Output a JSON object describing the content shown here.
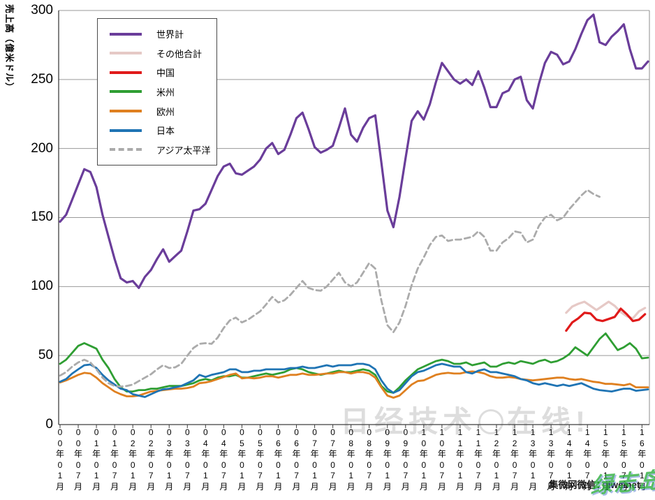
{
  "y_axis": {
    "title": "売上高（億米ドル）",
    "ticks": [
      0,
      50,
      100,
      150,
      200,
      250,
      300
    ]
  },
  "watermarks": {
    "brand_left": "日经技术",
    "brand_right": "在线!",
    "wechat": "集微网微信：jiweinet",
    "stamp": "绿志岛"
  },
  "chart_data": {
    "type": "line",
    "title": "",
    "ylabel": "売上高（億米ドル）",
    "ylim": [
      0,
      300
    ],
    "y_ticks": [
      0,
      50,
      100,
      150,
      200,
      250,
      300
    ],
    "grid": true,
    "legend_position": "top-left",
    "x_unit": "months since 2000-01",
    "sample_interval_months": 2,
    "x_tick_interval_months": 6,
    "x_tick_labels": [
      "00年01月",
      "00年07月",
      "01年01月",
      "01年07月",
      "02年01月",
      "02年07月",
      "03年01月",
      "03年07月",
      "04年01月",
      "04年07月",
      "05年01月",
      "05年07月",
      "06年01月",
      "06年07月",
      "07年01月",
      "07年07月",
      "08年01月",
      "08年07月",
      "09年01月",
      "09年07月",
      "10年01月",
      "10年07月",
      "11年01月",
      "11年07月",
      "12年01月",
      "12年07月",
      "13年01月",
      "13年07月",
      "14年01月",
      "14年07月",
      "15年01月",
      "15年07月",
      "16年01月"
    ],
    "series": [
      {
        "id": "world-total",
        "name": "世界計",
        "color": "#6A3D9A",
        "style": "solid",
        "width": 3.2,
        "start_month": 0,
        "values": [
          147,
          152,
          163,
          174,
          185,
          183,
          172,
          152,
          136,
          120,
          106,
          103,
          104,
          99,
          107,
          112,
          120,
          127,
          118,
          122,
          126,
          140,
          155,
          156,
          160,
          170,
          180,
          187,
          189,
          182,
          181,
          184,
          187,
          192,
          200,
          204,
          196,
          199,
          210,
          222,
          226,
          214,
          201,
          197,
          199,
          202,
          215,
          229,
          210,
          205,
          215,
          222,
          224,
          190,
          155,
          143,
          165,
          193,
          220,
          227,
          221,
          232,
          248,
          262,
          256,
          250,
          247,
          250,
          246,
          256,
          244,
          230,
          230,
          240,
          242,
          250,
          252,
          235,
          229,
          247,
          262,
          270,
          268,
          261,
          263,
          272,
          283,
          293,
          297,
          277,
          275,
          281,
          285,
          290,
          272,
          258,
          258,
          263
        ]
      },
      {
        "id": "others-total",
        "name": "その他合計",
        "color": "#E6C9C6",
        "style": "solid",
        "width": 3.2,
        "start_month": 167,
        "values": [
          81,
          85.5,
          87.5,
          89,
          86,
          83,
          86,
          89,
          86,
          81.5,
          78.5,
          77,
          82,
          84.5
        ]
      },
      {
        "id": "china",
        "name": "中国",
        "color": "#E01A1A",
        "style": "solid",
        "width": 3.2,
        "start_month": 167,
        "values": [
          68,
          74,
          77,
          81,
          80.5,
          76,
          75,
          76.5,
          78,
          84,
          80,
          75,
          76,
          80
        ]
      },
      {
        "id": "americas",
        "name": "米州",
        "color": "#2F9E33",
        "style": "solid",
        "width": 2.8,
        "start_month": 0,
        "values": [
          44,
          47,
          52,
          57,
          59,
          57,
          55,
          47,
          41,
          33,
          27,
          24,
          24,
          25,
          25,
          26,
          26,
          27,
          28,
          28,
          28,
          29,
          30,
          32,
          33,
          32,
          34,
          35,
          35,
          36,
          34,
          34,
          35,
          36,
          37,
          36,
          37,
          38,
          40,
          41,
          40,
          38,
          37,
          36,
          37,
          38,
          39,
          38,
          38,
          39,
          40,
          39,
          36,
          28,
          24,
          23,
          27,
          32,
          36,
          40,
          42,
          44,
          46,
          47,
          46,
          44,
          44,
          45,
          43,
          44,
          45,
          42,
          42,
          44,
          45,
          44,
          46,
          45,
          44,
          46,
          47,
          45,
          46,
          48,
          51,
          56,
          53,
          50,
          56,
          62,
          66,
          60,
          54,
          56,
          59,
          55,
          48,
          48.5
        ]
      },
      {
        "id": "europe",
        "name": "欧州",
        "color": "#DF8020",
        "style": "solid",
        "width": 2.8,
        "start_month": 0,
        "values": [
          30.5,
          32,
          34,
          36,
          37.5,
          37,
          34,
          30,
          27,
          24,
          22,
          20.5,
          20.5,
          21,
          22.5,
          24,
          24.5,
          25,
          25.5,
          26,
          26,
          26.5,
          27.5,
          30,
          30.5,
          31.5,
          33,
          34.5,
          36,
          37,
          33.5,
          34,
          33.5,
          34,
          35,
          35,
          34,
          35,
          36,
          36,
          37,
          36,
          36,
          36.5,
          37,
          37,
          38,
          38,
          37,
          38,
          38,
          37,
          34,
          27,
          21,
          19.5,
          21,
          25,
          29,
          31.5,
          32,
          34,
          36,
          37,
          37.5,
          37,
          37,
          38,
          38.5,
          38,
          37,
          35,
          34,
          34,
          34.5,
          34,
          33,
          32.5,
          32,
          32.5,
          33,
          33.5,
          34,
          34,
          33,
          32.5,
          33,
          32,
          31,
          30.5,
          29.5,
          29.5,
          29,
          28.5,
          29.5,
          27,
          27,
          27
        ]
      },
      {
        "id": "japan",
        "name": "日本",
        "color": "#1F74B4",
        "style": "solid",
        "width": 2.8,
        "start_month": 0,
        "values": [
          31,
          33,
          37,
          40,
          43,
          43.5,
          41,
          36,
          32,
          29,
          26,
          25,
          22,
          21,
          20,
          22,
          24,
          25.5,
          26,
          27,
          28,
          30,
          32,
          36,
          34.5,
          36,
          37,
          38,
          40,
          40,
          38,
          38,
          39,
          39,
          40,
          40,
          40,
          40,
          41,
          41,
          42,
          41,
          41,
          42,
          43,
          42,
          43,
          43,
          43,
          44,
          44,
          43,
          40,
          32,
          26,
          23,
          25,
          30,
          35,
          38,
          39,
          41,
          43,
          44,
          43,
          42,
          42,
          38,
          37,
          39,
          40,
          38,
          38,
          37,
          36,
          35,
          33,
          32,
          30,
          29,
          30,
          29,
          28,
          29,
          28,
          29,
          30,
          28,
          26,
          25,
          24.5,
          24,
          25,
          26,
          26,
          24.5,
          25,
          25.5
        ]
      },
      {
        "id": "asia-pacific",
        "name": "アジア太平洋",
        "color": "#ABABAB",
        "style": "dashed",
        "width": 2.8,
        "start_month": 0,
        "values": [
          35.5,
          38,
          42,
          45,
          47,
          45,
          40,
          34,
          30,
          28,
          27.5,
          28,
          29,
          31.5,
          34,
          36.5,
          40,
          43,
          41,
          41.5,
          44,
          50,
          55.5,
          58.5,
          59,
          58.5,
          63,
          70,
          75.5,
          77.5,
          74,
          76,
          79,
          82,
          87,
          92.5,
          88.5,
          90,
          94,
          99,
          104,
          99,
          97.5,
          97,
          100,
          105,
          110,
          103,
          100,
          103,
          110,
          117,
          113,
          90,
          72,
          67,
          74,
          86,
          101,
          113,
          121,
          130,
          136,
          137,
          133,
          134,
          134,
          135,
          136,
          140,
          136,
          126,
          126,
          132,
          135,
          140,
          139,
          132,
          134,
          144,
          150,
          152,
          148,
          150,
          156,
          161,
          166,
          170,
          167,
          165
        ]
      }
    ]
  }
}
